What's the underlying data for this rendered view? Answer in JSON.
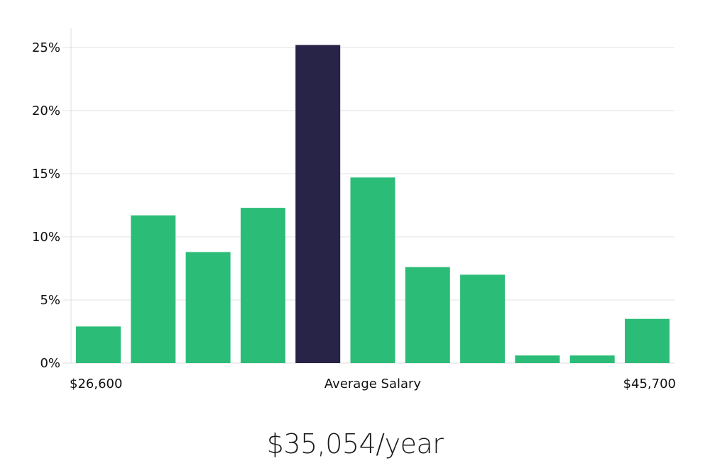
{
  "chart_data": {
    "type": "bar",
    "title": "",
    "xlabel": "Average Salary",
    "ylabel": "",
    "ylim": [
      0,
      25
    ],
    "yticks": [
      0,
      5,
      10,
      15,
      20,
      25
    ],
    "ytick_suffix": "%",
    "grid": true,
    "range_min_label": "$26,600",
    "range_max_label": "$45,700",
    "values": [
      2.9,
      11.7,
      8.8,
      12.3,
      25.2,
      14.7,
      7.6,
      7.0,
      0.6,
      0.6,
      3.5
    ],
    "highlight_index": 4,
    "colors": {
      "bar": "#2bbd78",
      "highlight": "#272448",
      "grid": "#e3e3e3",
      "axis": "#dddddd"
    }
  },
  "summary": {
    "average_salary": "$35,054/year"
  }
}
